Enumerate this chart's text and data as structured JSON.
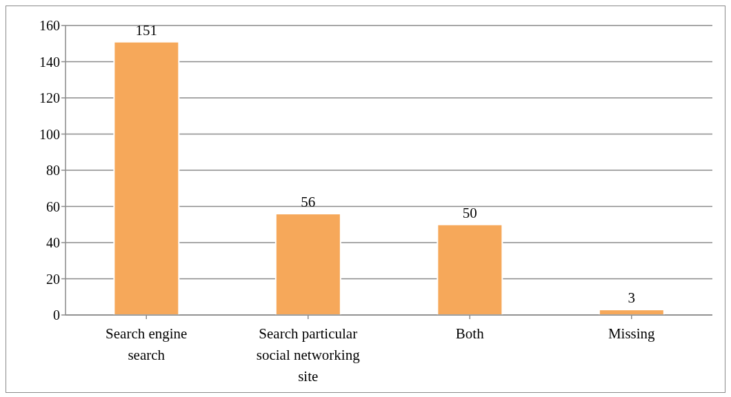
{
  "chart_data": {
    "type": "bar",
    "categories": [
      "Search engine search",
      "Search particular social networking site",
      "Both",
      "Missing"
    ],
    "values": [
      151,
      56,
      50,
      3
    ],
    "color": "#f6a85a",
    "ylim": [
      0,
      160
    ],
    "yticks": [
      0,
      20,
      40,
      60,
      80,
      100,
      120,
      140,
      160
    ],
    "grid": "y",
    "data_labels": true
  }
}
